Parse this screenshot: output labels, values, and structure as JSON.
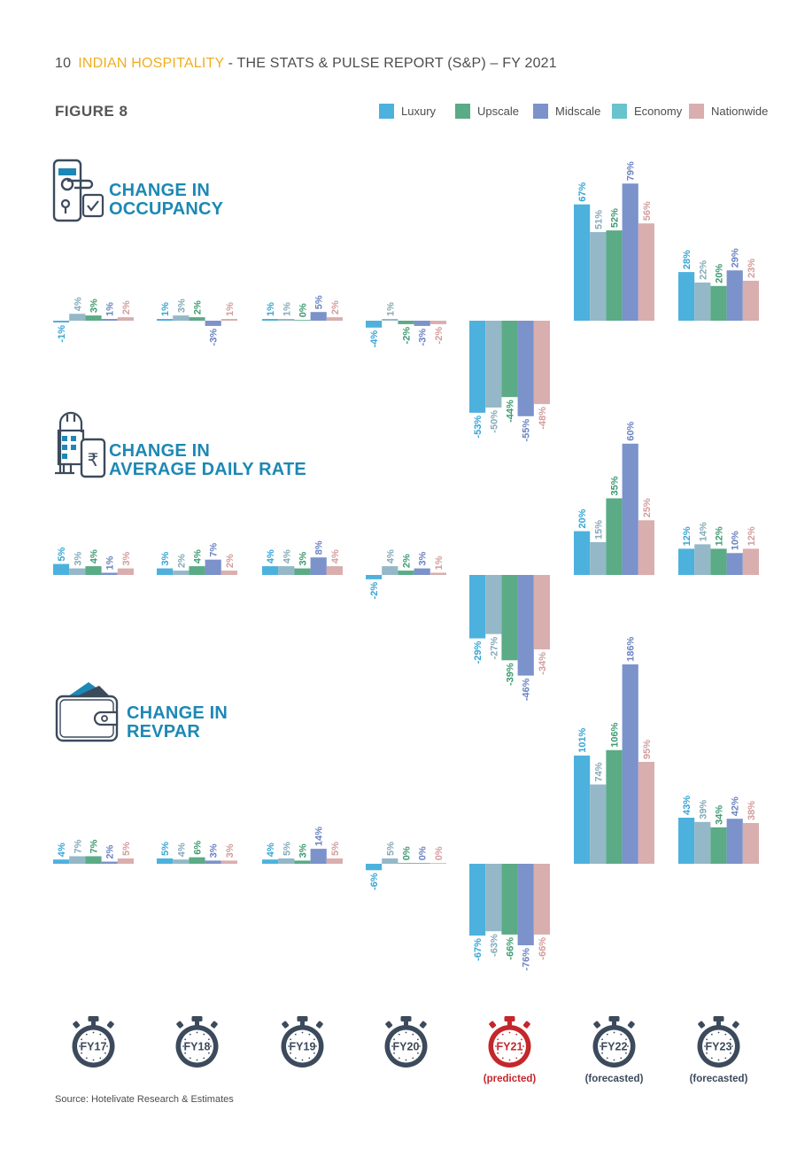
{
  "header": {
    "page_number": "10",
    "brand": "INDIAN HOSPITALITY",
    "title": " - THE STATS & PULSE REPORT (S&P) – FY 2021"
  },
  "figure_label": "FIGURE 8",
  "source": "Source: Hotelivate Research & Estimates",
  "colors": {
    "Luxury": "#4db1dd",
    "Economy": "#94b8c7",
    "Upscale": "#5aab86",
    "Midscale": "#7b92cb",
    "Nationwide": "#d9aeae",
    "title_blue": "#1d88b5",
    "icon_dark": "#3c4a5c",
    "fy21_red": "#c4272b"
  },
  "legend": [
    {
      "label": "Luxury",
      "color": "#4db1dd"
    },
    {
      "label": "Upscale",
      "color": "#5aab86"
    },
    {
      "label": "Midscale",
      "color": "#7b92cb"
    },
    {
      "label": "Economy",
      "color": "#69c3cc"
    },
    {
      "label": "Nationwide",
      "color": "#d9aeae"
    }
  ],
  "sections": [
    {
      "title_line1": "CHANGE IN",
      "title_line2": "OCCUPANCY",
      "icon": "door-lock-icon"
    },
    {
      "title_line1": "CHANGE IN",
      "title_line2": "AVERAGE DAILY RATE",
      "icon": "hotel-rupee-phone-icon"
    },
    {
      "title_line1": "CHANGE IN",
      "title_line2": "REVPAR",
      "icon": "wallet-icon"
    }
  ],
  "timeline": [
    {
      "label": "FY17",
      "note": ""
    },
    {
      "label": "FY18",
      "note": ""
    },
    {
      "label": "FY19",
      "note": ""
    },
    {
      "label": "FY20",
      "note": ""
    },
    {
      "label": "FY21",
      "note": "(predicted)"
    },
    {
      "label": "FY22",
      "note": "(forecasted)"
    },
    {
      "label": "FY23",
      "note": "(forecasted)"
    }
  ],
  "chart_data": [
    {
      "type": "bar",
      "title": "CHANGE IN OCCUPANCY",
      "categories": [
        "FY17",
        "FY18",
        "FY19",
        "FY20",
        "FY21",
        "FY22",
        "FY23"
      ],
      "series": [
        {
          "name": "Luxury",
          "values": [
            -1,
            1,
            1,
            -4,
            -53,
            67,
            28
          ]
        },
        {
          "name": "Economy",
          "values": [
            4,
            3,
            1,
            1,
            -50,
            51,
            22
          ]
        },
        {
          "name": "Upscale",
          "values": [
            3,
            2,
            0,
            -2,
            -44,
            52,
            20
          ]
        },
        {
          "name": "Midscale",
          "values": [
            1,
            -3,
            5,
            -3,
            -55,
            79,
            29
          ]
        },
        {
          "name": "Nationwide",
          "values": [
            2,
            1,
            2,
            -2,
            -48,
            56,
            23
          ]
        }
      ]
    },
    {
      "type": "bar",
      "title": "CHANGE IN AVERAGE DAILY RATE",
      "categories": [
        "FY17",
        "FY18",
        "FY19",
        "FY20",
        "FY21",
        "FY22",
        "FY23"
      ],
      "series": [
        {
          "name": "Luxury",
          "values": [
            5,
            3,
            4,
            -2,
            -29,
            20,
            12
          ]
        },
        {
          "name": "Economy",
          "values": [
            3,
            2,
            4,
            4,
            -27,
            15,
            14
          ]
        },
        {
          "name": "Upscale",
          "values": [
            4,
            4,
            3,
            2,
            -39,
            35,
            12
          ]
        },
        {
          "name": "Midscale",
          "values": [
            1,
            7,
            8,
            3,
            -46,
            60,
            10
          ]
        },
        {
          "name": "Nationwide",
          "values": [
            3,
            2,
            4,
            1,
            -34,
            25,
            12
          ]
        }
      ]
    },
    {
      "type": "bar",
      "title": "CHANGE IN REVPAR",
      "categories": [
        "FY17",
        "FY18",
        "FY19",
        "FY20",
        "FY21",
        "FY22",
        "FY23"
      ],
      "series": [
        {
          "name": "Luxury",
          "values": [
            4,
            5,
            4,
            -6,
            -67,
            101,
            43
          ]
        },
        {
          "name": "Economy",
          "values": [
            7,
            4,
            5,
            5,
            -63,
            74,
            39
          ]
        },
        {
          "name": "Upscale",
          "values": [
            7,
            6,
            3,
            0,
            -66,
            106,
            34
          ]
        },
        {
          "name": "Midscale",
          "values": [
            2,
            3,
            14,
            0,
            -76,
            186,
            42
          ]
        },
        {
          "name": "Nationwide",
          "values": [
            5,
            3,
            5,
            0,
            -66,
            95,
            38
          ]
        }
      ]
    }
  ]
}
